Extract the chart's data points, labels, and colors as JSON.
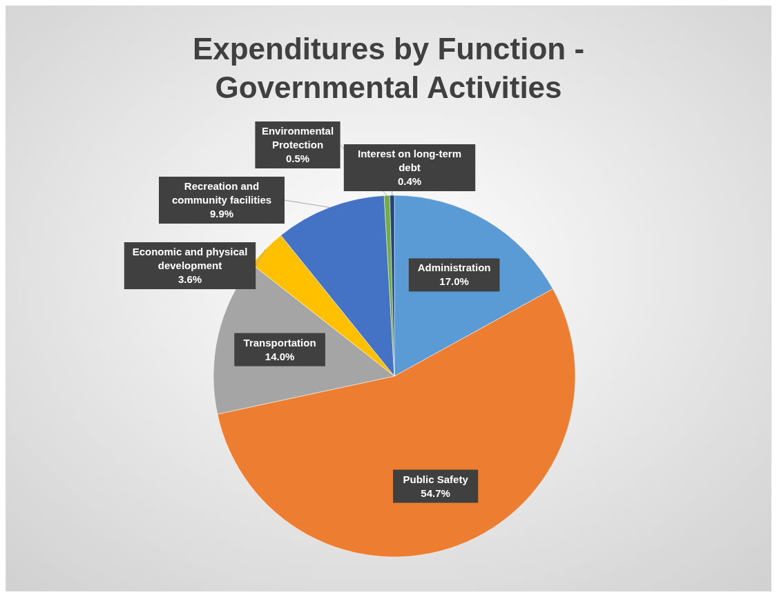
{
  "chart_data": {
    "type": "pie",
    "title": "Expenditures by Function - Governmental Activities",
    "categories": [
      "Administration",
      "Public Safety",
      "Transportation",
      "Economic and physical development",
      "Recreation and community facilities",
      "Environmental Protection",
      "Interest on long-term debt"
    ],
    "values": [
      17.0,
      54.7,
      14.0,
      3.6,
      9.9,
      0.5,
      0.4
    ],
    "colors": [
      "#5b9bd5",
      "#ed7d31",
      "#a5a5a5",
      "#ffc000",
      "#4472c4",
      "#70ad47",
      "#264478"
    ],
    "value_labels": [
      "17.0%",
      "54.7%",
      "14.0%",
      "3.6%",
      "9.9%",
      "0.5%",
      "0.4%"
    ],
    "legend": false
  }
}
